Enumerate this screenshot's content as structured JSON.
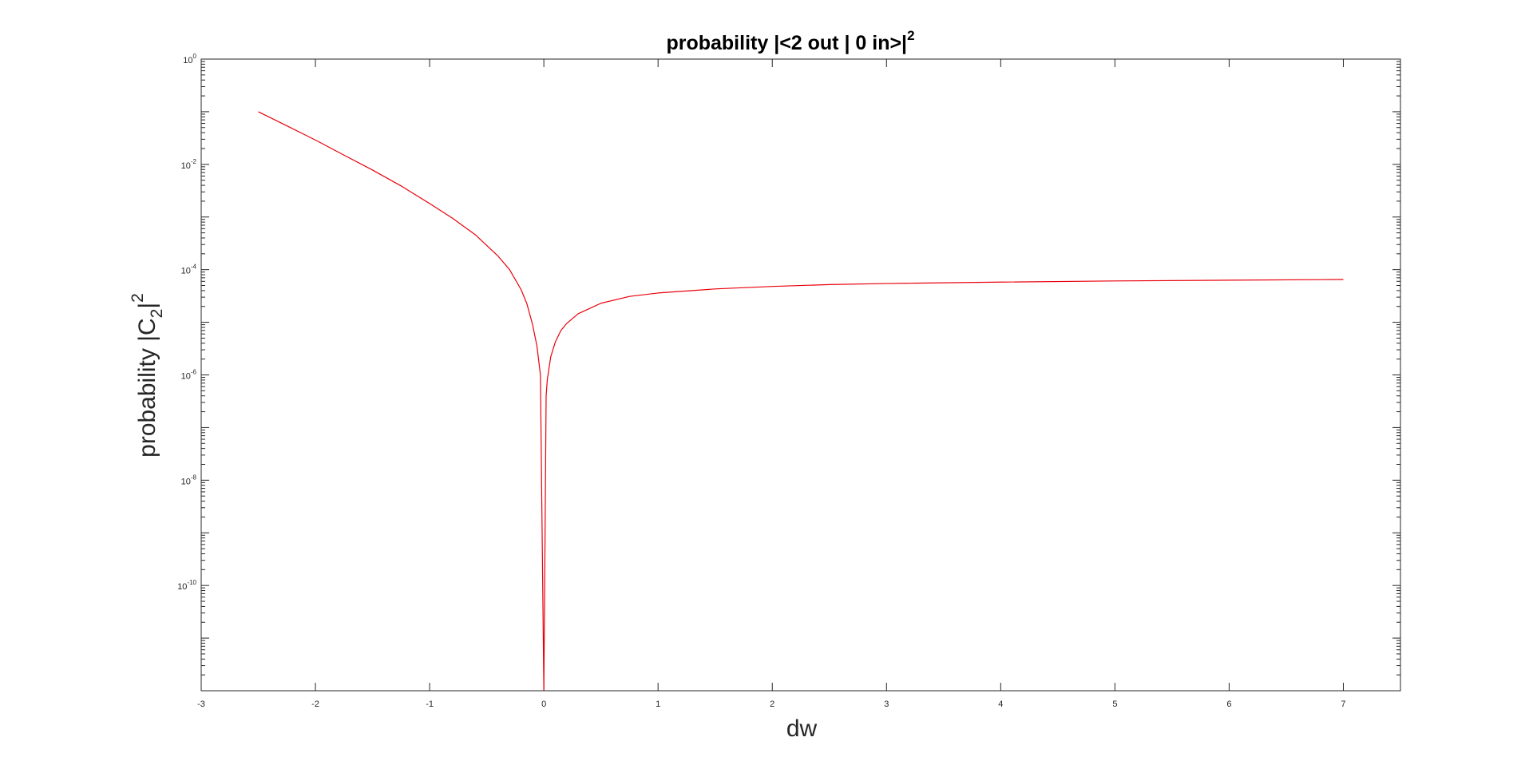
{
  "chart_data": {
    "type": "line",
    "title": "probability |<2 out | 0 in>|",
    "title_superscript": "2",
    "xlabel": "dw",
    "ylabel": {
      "prefix": "probability |C",
      "subscript": "2",
      "suffix": "|",
      "superscript": "2"
    },
    "xlim": [
      -3,
      7.5
    ],
    "ylim": [
      1e-12,
      1
    ],
    "yscale": "log",
    "grid": false,
    "x_ticks": [
      -3,
      -2,
      -1,
      0,
      1,
      2,
      3,
      4,
      5,
      6,
      7
    ],
    "x_tick_labels": [
      "-3",
      "-2",
      "-1",
      "0",
      "1",
      "2",
      "3",
      "4",
      "5",
      "6",
      "7"
    ],
    "y_ticks": [
      {
        "value": 1,
        "base": "10",
        "exp": "0"
      },
      {
        "value": 0.01,
        "base": "10",
        "exp": "-2"
      },
      {
        "value": 0.0001,
        "base": "10",
        "exp": "-4"
      },
      {
        "value": 1e-06,
        "base": "10",
        "exp": "-6"
      },
      {
        "value": 1e-08,
        "base": "10",
        "exp": "-8"
      },
      {
        "value": 1e-10,
        "base": "10",
        "exp": "-10"
      }
    ],
    "series": [
      {
        "color": "#e8000b",
        "x": [
          -2.5,
          -2.25,
          -2.0,
          -1.75,
          -1.5,
          -1.25,
          -1.0,
          -0.8,
          -0.6,
          -0.4,
          -0.3,
          -0.2,
          -0.15,
          -0.1,
          -0.06,
          -0.03,
          0.0,
          0.02,
          0.03,
          0.06,
          0.1,
          0.15,
          0.2,
          0.3,
          0.5,
          0.75,
          1.0,
          1.5,
          2.0,
          2.5,
          3.0,
          4.0,
          5.0,
          6.0,
          7.0
        ],
        "y": [
          0.1,
          0.054,
          0.029,
          0.015,
          0.0078,
          0.0039,
          0.0018,
          0.00095,
          0.00046,
          0.00018,
          0.0001,
          4.2e-05,
          2.3e-05,
          9.3e-06,
          3.5e-06,
          1e-06,
          1e-12,
          4e-07,
          8e-07,
          2.2e-06,
          4.2e-06,
          7e-06,
          9.5e-06,
          1.45e-05,
          2.3e-05,
          3.1e-05,
          3.6e-05,
          4.3e-05,
          4.8e-05,
          5.2e-05,
          5.45e-05,
          5.8e-05,
          6.1e-05,
          6.3e-05,
          6.5e-05
        ]
      }
    ]
  }
}
